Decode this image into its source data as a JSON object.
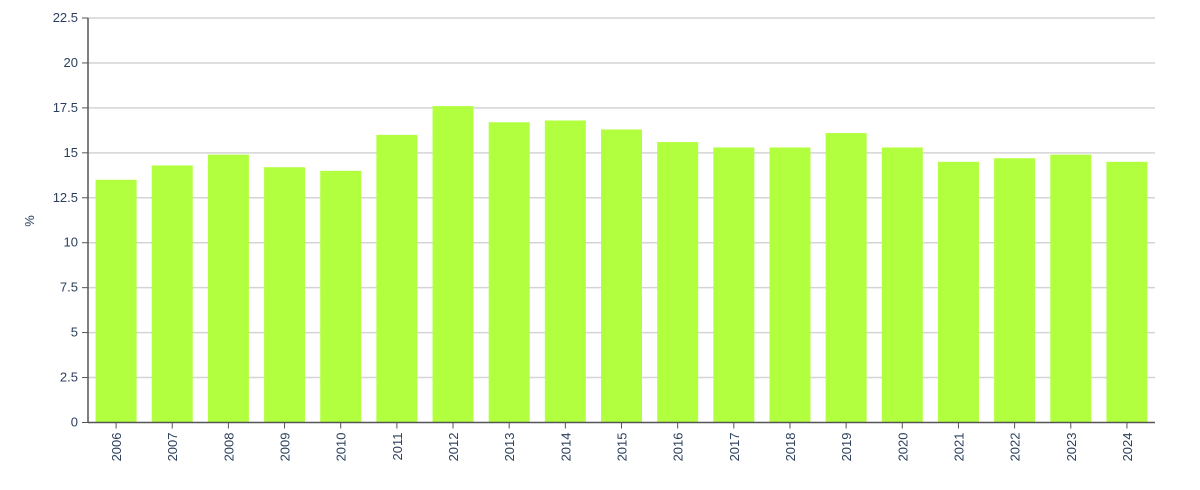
{
  "chart_data": {
    "type": "bar",
    "title": "",
    "xlabel": "",
    "ylabel": "%",
    "ylim": [
      0,
      22.5
    ],
    "yticks": [
      "0",
      "2.5",
      "5",
      "7.5",
      "10",
      "12.5",
      "15",
      "17.5",
      "20",
      "22.5"
    ],
    "grid": true,
    "bar_color": "#b2ff40",
    "categories": [
      "2006",
      "2007",
      "2008",
      "2009",
      "2010",
      "2011",
      "2012",
      "2013",
      "2014",
      "2015",
      "2016",
      "2017",
      "2018",
      "2019",
      "2020",
      "2021",
      "2022",
      "2023",
      "2024"
    ],
    "values": [
      13.5,
      14.3,
      14.9,
      14.2,
      14.0,
      16.0,
      17.6,
      16.7,
      16.8,
      16.3,
      15.6,
      15.3,
      15.3,
      16.1,
      15.3,
      14.5,
      14.7,
      14.9,
      14.5
    ]
  }
}
